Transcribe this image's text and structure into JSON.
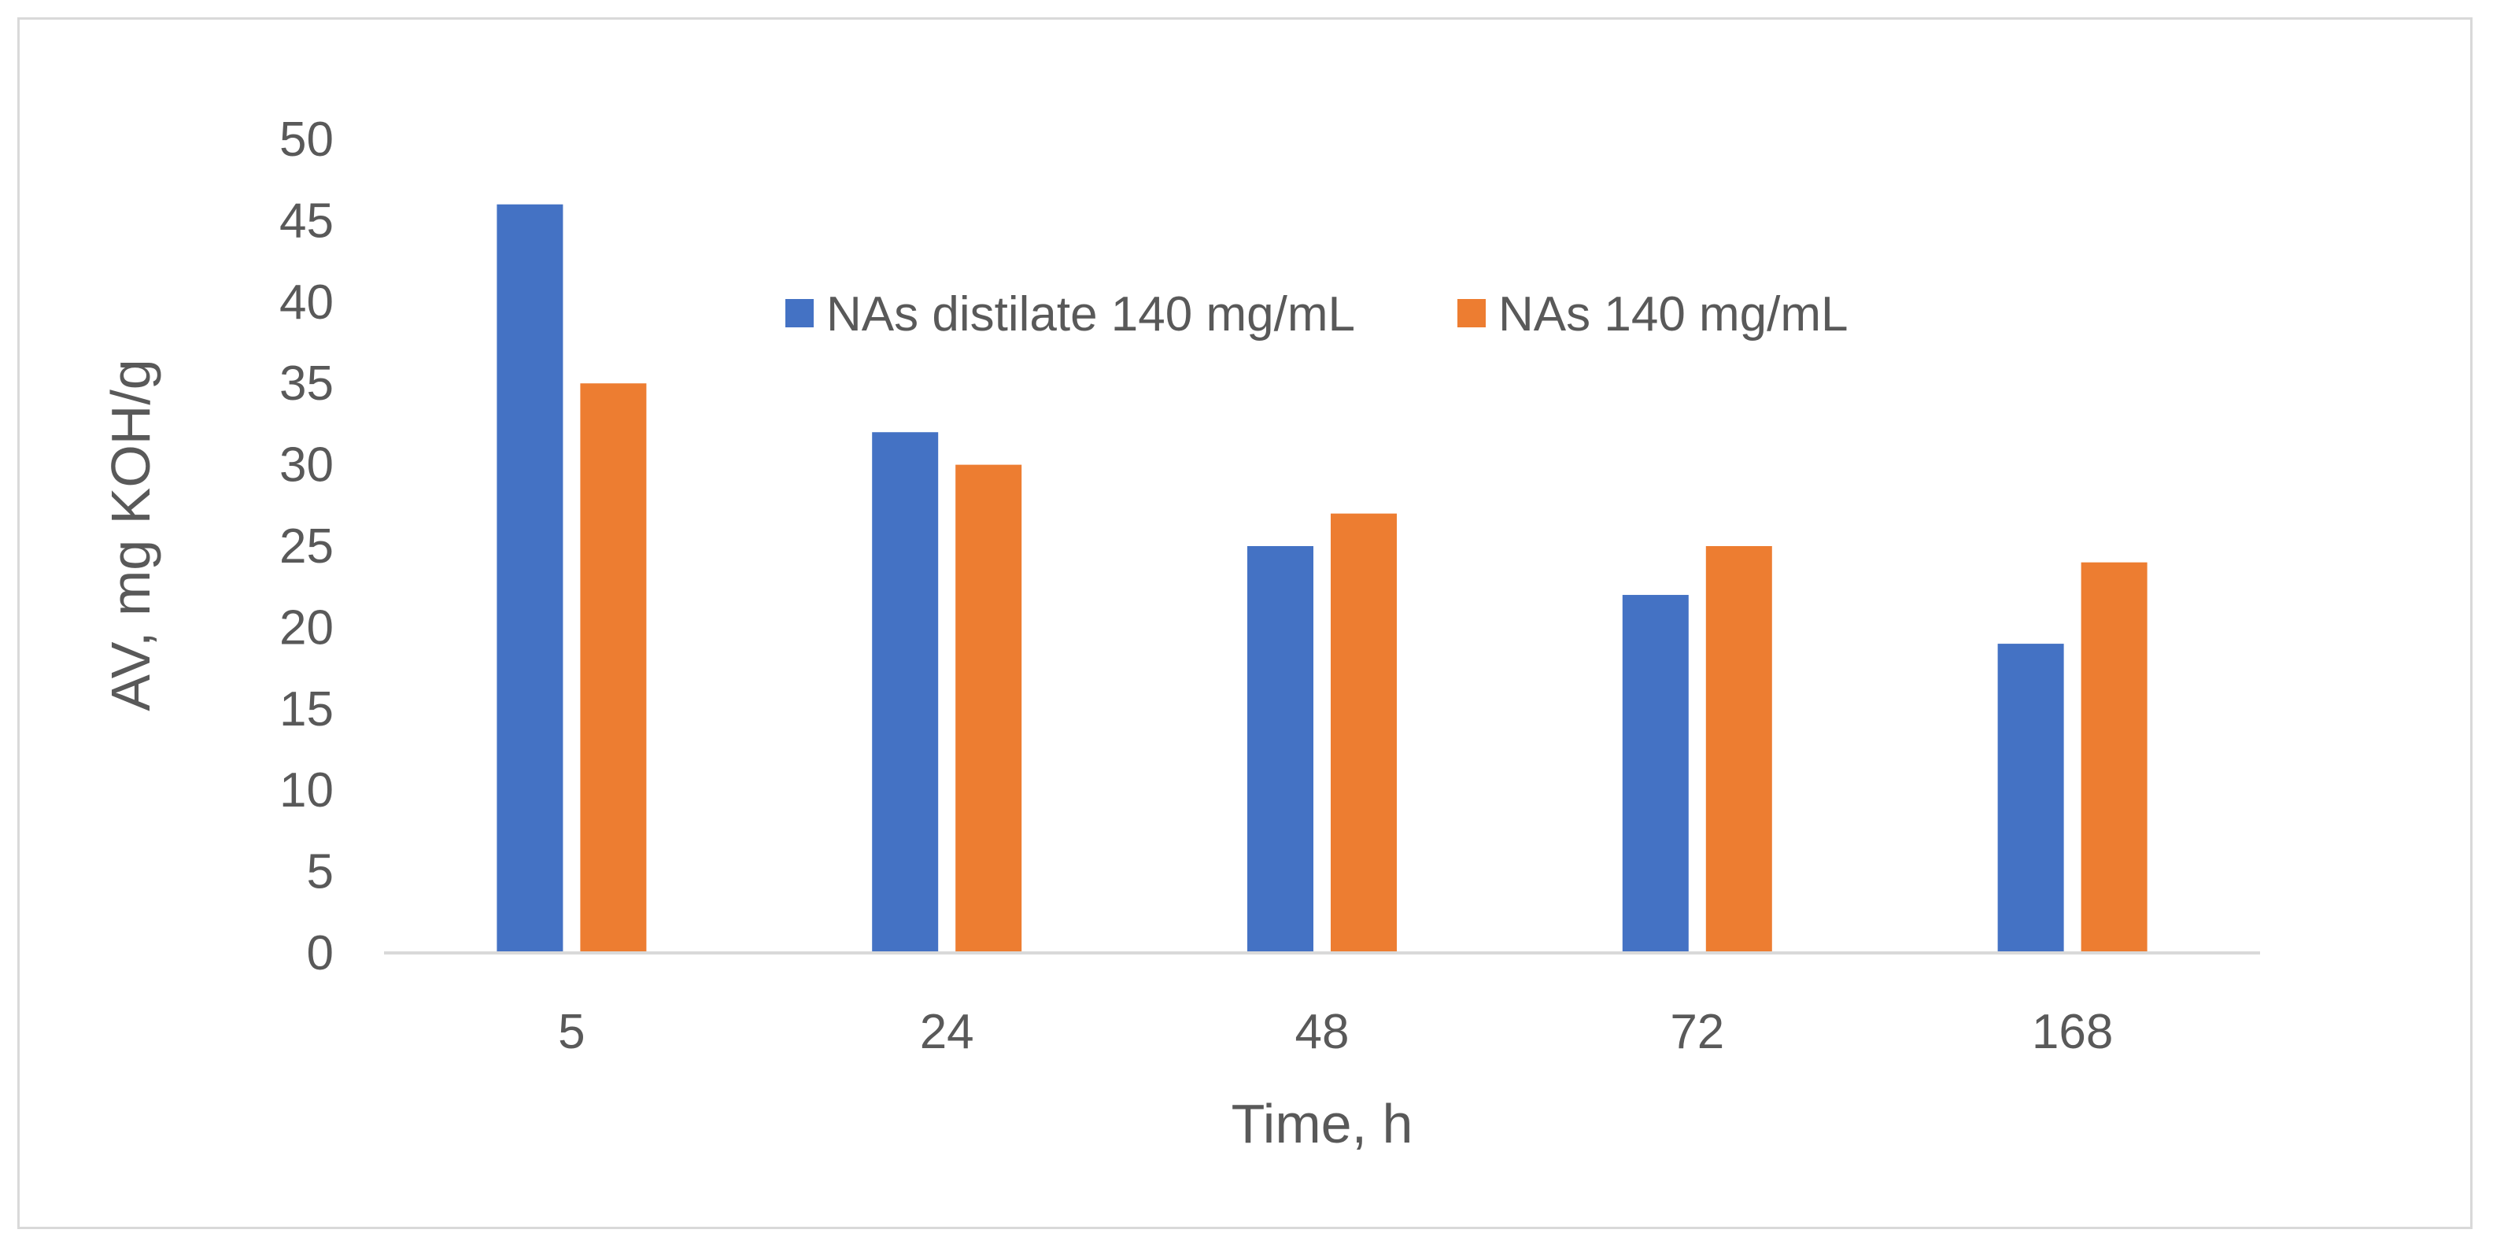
{
  "chart_data": {
    "type": "bar",
    "title": "",
    "categories": [
      "5",
      "24",
      "48",
      "72",
      "168"
    ],
    "series": [
      {
        "name": "NAs distilate  140 mg/mL",
        "color": "#4472c4",
        "values": [
          46,
          32,
          25,
          22,
          19
        ]
      },
      {
        "name": "NAs 140 mg/mL",
        "color": "#ed7d31",
        "values": [
          35,
          30,
          27,
          25,
          24
        ]
      }
    ],
    "xlabel": "Time, h",
    "ylabel": "AV, mg KOH/g",
    "ylim": [
      0,
      50
    ],
    "yticks": [
      "0",
      "5",
      "10",
      "15",
      "20",
      "25",
      "30",
      "35",
      "40",
      "45",
      "50"
    ],
    "grid": false,
    "legend_position": "top-center"
  }
}
